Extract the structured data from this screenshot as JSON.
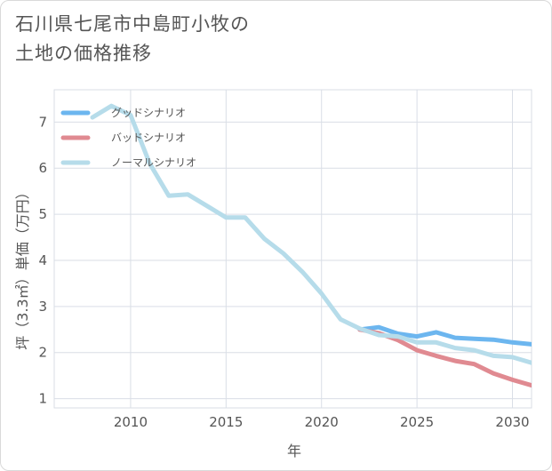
{
  "title_lines": [
    "石川県七尾市中島町小牧の",
    "土地の価格推移"
  ],
  "chart_data": {
    "type": "line",
    "xlabel": "年",
    "ylabel": "坪（3.3㎡）単価（万円）",
    "xlim": [
      2006,
      2031
    ],
    "ylim": [
      0.8,
      7.7
    ],
    "x_ticks": [
      2010,
      2015,
      2020,
      2025,
      2030
    ],
    "y_ticks": [
      1,
      2,
      3,
      4,
      5,
      6,
      7
    ],
    "grid": true,
    "legend_position": "top-left",
    "series": [
      {
        "name": "グッドシナリオ",
        "color": "#6cb6ef",
        "x": [
          2022,
          2023,
          2024,
          2025,
          2026,
          2027,
          2028,
          2029,
          2030,
          2031
        ],
        "y": [
          2.5,
          2.55,
          2.41,
          2.35,
          2.44,
          2.32,
          2.3,
          2.28,
          2.22,
          2.18
        ]
      },
      {
        "name": "バッドシナリオ",
        "color": "#e08a91",
        "x": [
          2022,
          2023,
          2024,
          2025,
          2026,
          2027,
          2028,
          2029,
          2030,
          2031
        ],
        "y": [
          2.5,
          2.42,
          2.27,
          2.05,
          1.93,
          1.82,
          1.75,
          1.55,
          1.41,
          1.29
        ]
      },
      {
        "name": "ノーマルシナリオ",
        "color": "#b6dcea",
        "x": [
          2008,
          2009,
          2010,
          2011,
          2012,
          2013,
          2014,
          2015,
          2016,
          2017,
          2018,
          2019,
          2020,
          2021,
          2022,
          2023,
          2024,
          2025,
          2026,
          2027,
          2028,
          2029,
          2030,
          2031
        ],
        "y": [
          7.1,
          7.35,
          7.15,
          6.1,
          5.4,
          5.43,
          5.18,
          4.93,
          4.93,
          4.47,
          4.15,
          3.75,
          3.28,
          2.72,
          2.52,
          2.38,
          2.35,
          2.22,
          2.22,
          2.1,
          2.05,
          1.93,
          1.9,
          1.78
        ]
      }
    ]
  }
}
